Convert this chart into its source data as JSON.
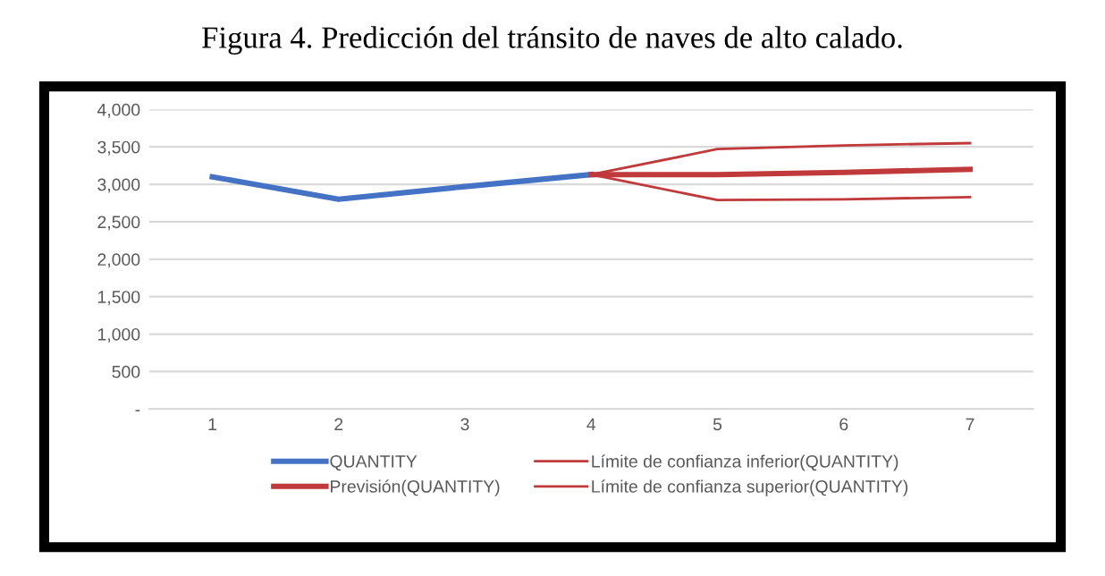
{
  "chart_data": {
    "type": "line",
    "title": "Figura 4. Predicción del tránsito de naves de alto calado.",
    "categories": [
      "1",
      "2",
      "3",
      "4",
      "5",
      "6",
      "7"
    ],
    "series": [
      {
        "name": "QUANTITY",
        "color": "#4472c4",
        "values": [
          3100,
          2800,
          2970,
          3130,
          null,
          null,
          null
        ]
      },
      {
        "name": "Previsión(QUANTITY)",
        "color": "#c0393b",
        "values": [
          null,
          null,
          null,
          3130,
          3130,
          3160,
          3200
        ]
      },
      {
        "name": "Límite de confianza inferior(QUANTITY)",
        "color": "#c0393b",
        "values": [
          null,
          null,
          null,
          3130,
          2790,
          2800,
          2830
        ]
      },
      {
        "name": "Límite de confianza superior(QUANTITY)",
        "color": "#c0393b",
        "values": [
          null,
          null,
          null,
          3130,
          3470,
          3520,
          3550
        ]
      }
    ],
    "ylim": [
      0,
      4000
    ],
    "yticks": [
      {
        "value": 0,
        "label": "-"
      },
      {
        "value": 500,
        "label": "500"
      },
      {
        "value": 1000,
        "label": "1,000"
      },
      {
        "value": 1500,
        "label": "1,500"
      },
      {
        "value": 2000,
        "label": "2,000"
      },
      {
        "value": 2500,
        "label": "2,500"
      },
      {
        "value": 3000,
        "label": "3,000"
      },
      {
        "value": 3500,
        "label": "3,500"
      },
      {
        "value": 4000,
        "label": "4,000"
      }
    ],
    "grid": "y",
    "legend": "bottom",
    "marker": "none",
    "line_style": "solid"
  }
}
